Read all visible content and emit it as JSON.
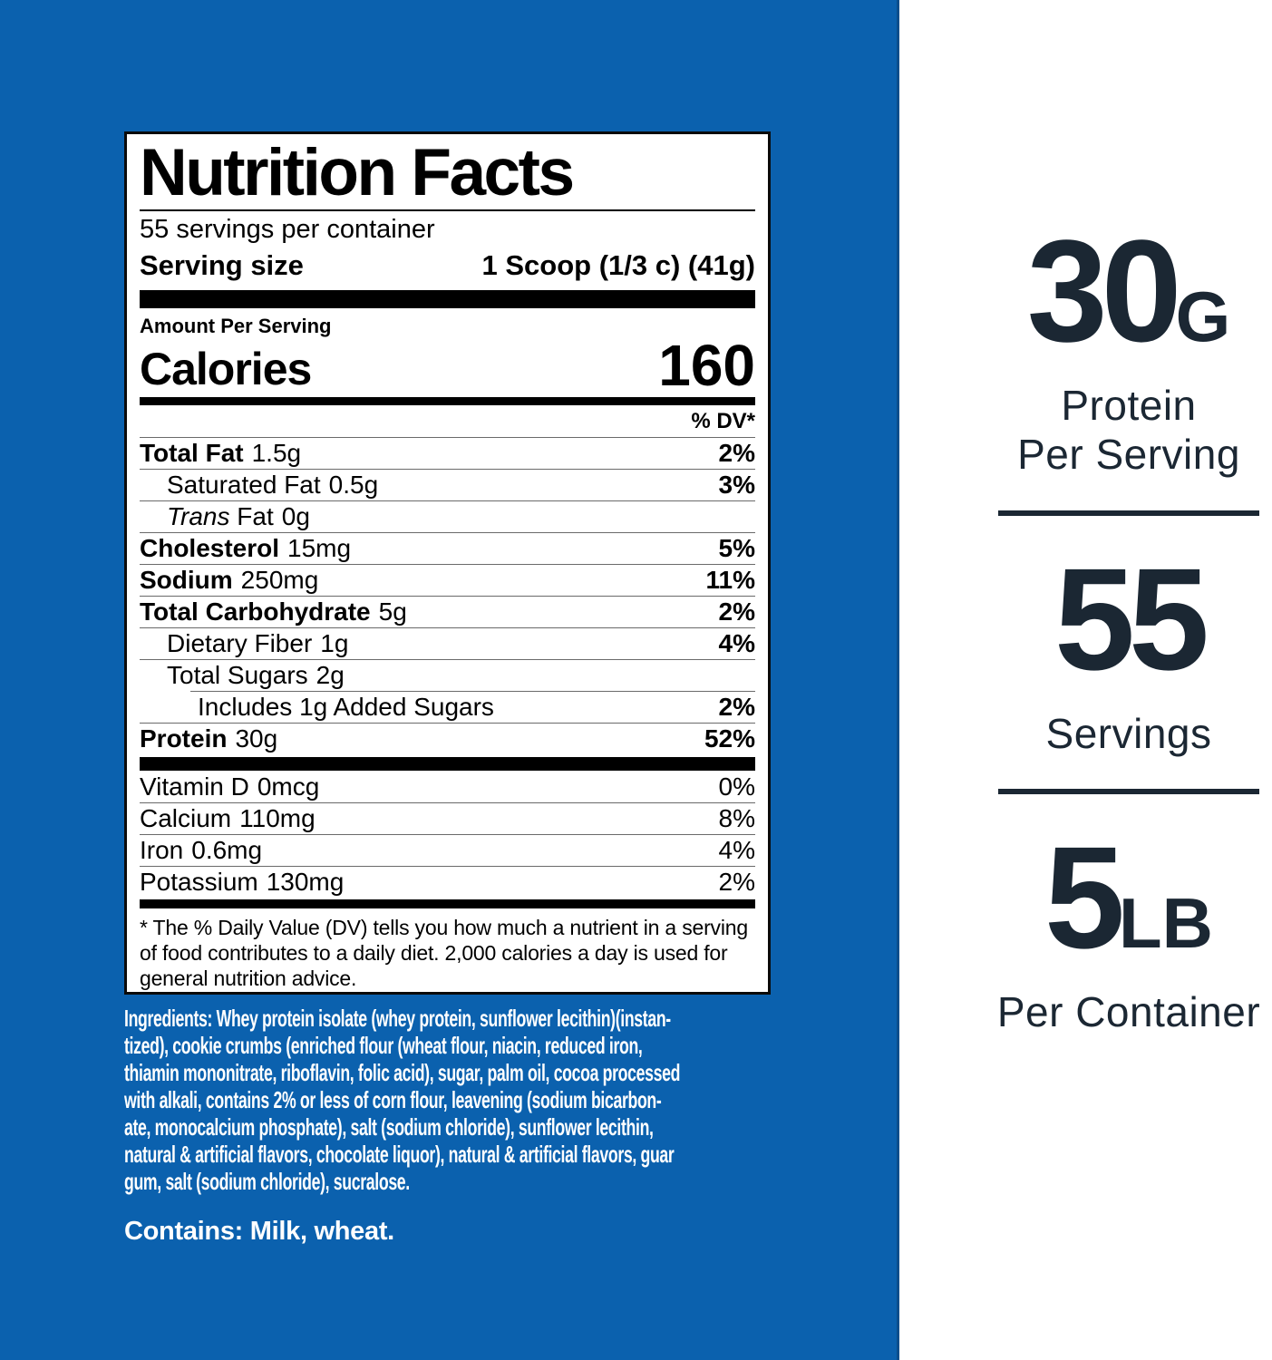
{
  "colors": {
    "blue": "#0b61ae",
    "blue_edge": "#0a4e8c",
    "navy": "#1b2733",
    "label_background": "#ffffff",
    "label_text": "#000000",
    "ingredients_text": "#ffffff"
  },
  "label": {
    "title": "Nutrition Facts",
    "servings_per_container": "55 servings per container",
    "serving_size_label": "Serving size",
    "serving_size_value": "1 Scoop (1/3 c) (41g)",
    "amount_per_serving": "Amount Per Serving",
    "calories_label": "Calories",
    "calories_value": "160",
    "dv_header": "% DV*",
    "rows": [
      {
        "italic": "",
        "name": "Total Fat",
        "bold": true,
        "amount": "1.5g",
        "dv": "2%",
        "dv_bold": true,
        "indent": 0,
        "sep": "full"
      },
      {
        "italic": "",
        "name": "Saturated Fat",
        "bold": false,
        "amount": "0.5g",
        "dv": "3%",
        "dv_bold": true,
        "indent": 1,
        "sep": "full"
      },
      {
        "italic": "Trans",
        "name": "Fat",
        "bold": false,
        "amount": "0g",
        "dv": "",
        "dv_bold": false,
        "indent": 1,
        "sep": "full"
      },
      {
        "italic": "",
        "name": "Cholesterol",
        "bold": true,
        "amount": "15mg",
        "dv": "5%",
        "dv_bold": true,
        "indent": 0,
        "sep": "full"
      },
      {
        "italic": "",
        "name": "Sodium",
        "bold": true,
        "amount": "250mg",
        "dv": "11%",
        "dv_bold": true,
        "indent": 0,
        "sep": "full"
      },
      {
        "italic": "",
        "name": "Total Carbohydrate",
        "bold": true,
        "amount": "5g",
        "dv": "2%",
        "dv_bold": true,
        "indent": 0,
        "sep": "full"
      },
      {
        "italic": "",
        "name": "Dietary Fiber",
        "bold": false,
        "amount": "1g",
        "dv": "4%",
        "dv_bold": true,
        "indent": 1,
        "sep": "full"
      },
      {
        "italic": "",
        "name": "Total Sugars",
        "bold": false,
        "amount": "2g",
        "dv": "",
        "dv_bold": false,
        "indent": 1,
        "sep": "indent"
      },
      {
        "italic": "",
        "name": "Includes 1g Added Sugars",
        "bold": false,
        "amount": "",
        "dv": "2%",
        "dv_bold": true,
        "indent": 2,
        "sep": "full"
      },
      {
        "italic": "",
        "name": "Protein",
        "bold": true,
        "amount": "30g",
        "dv": "52%",
        "dv_bold": true,
        "indent": 0,
        "sep": "none"
      }
    ],
    "micronutrients": [
      {
        "name": "Vitamin D",
        "amount": "0mcg",
        "dv": "0%",
        "sep": "full"
      },
      {
        "name": "Calcium",
        "amount": "110mg",
        "dv": "8%",
        "sep": "full"
      },
      {
        "name": "Iron",
        "amount": "0.6mg",
        "dv": "4%",
        "sep": "full"
      },
      {
        "name": "Potassium",
        "amount": "130mg",
        "dv": "2%",
        "sep": "none"
      }
    ],
    "footnote": "* The % Daily Value (DV) tells you how much a nutrient in a serving of food contributes to a daily diet. 2,000 calories a day is used for general nutrition advice."
  },
  "ingredients": {
    "lines": [
      "Ingredients: Whey protein isolate (whey protein, sunflower lecithin)(instan-",
      "tized), cookie crumbs (enriched flour (wheat flour, niacin, reduced iron,",
      "thiamin mononitrate, riboflavin, folic acid), sugar, palm oil, cocoa processed",
      "with alkali, contains 2% or less of corn flour, leavening (sodium bicarbon-",
      "ate, monocalcium phosphate), salt (sodium chloride), sunflower lecithin,",
      "natural & artificial flavors, chocolate liquor), natural & artificial flavors, guar",
      "gum, salt (sodium chloride), sucralose."
    ],
    "contains": "Contains: Milk, wheat."
  },
  "highlights": [
    {
      "big": "30",
      "unit": "G",
      "lines": [
        "Protein",
        "Per Serving"
      ]
    },
    {
      "big": "55",
      "unit": "",
      "lines": [
        "Servings"
      ]
    },
    {
      "big": "5",
      "unit": "LB",
      "lines": [
        "Per Container"
      ]
    }
  ]
}
